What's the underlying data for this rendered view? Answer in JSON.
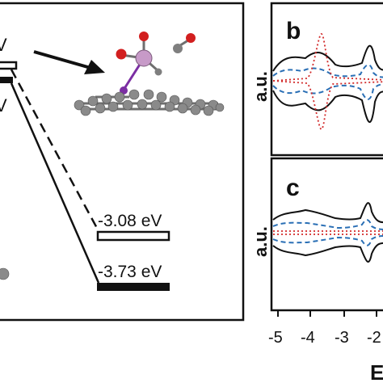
{
  "left_panel": {
    "levels": [
      {
        "id": "upper",
        "label": "-3.08 eV"
      },
      {
        "id": "lower",
        "label": "-3.73 eV"
      }
    ],
    "partial_labels": [
      "V",
      "V"
    ]
  },
  "panel_b": {
    "letter": "b",
    "ylabel": "a.u."
  },
  "panel_c": {
    "letter": "c",
    "ylabel": "a.u."
  },
  "x_axis": {
    "ticks": [
      "-5",
      "-4",
      "-3",
      "-2"
    ],
    "label_fragment": "E"
  },
  "colors": {
    "black": "#111111",
    "blue_dashed": "#2a6fb5",
    "red_dotted": "#d22a2a",
    "carbon_atom": "#8a8a8a",
    "oxygen_atom": "#d21f1f",
    "metal_atom": "#c79ac8",
    "bond_purple": "#7b2ea3"
  }
}
